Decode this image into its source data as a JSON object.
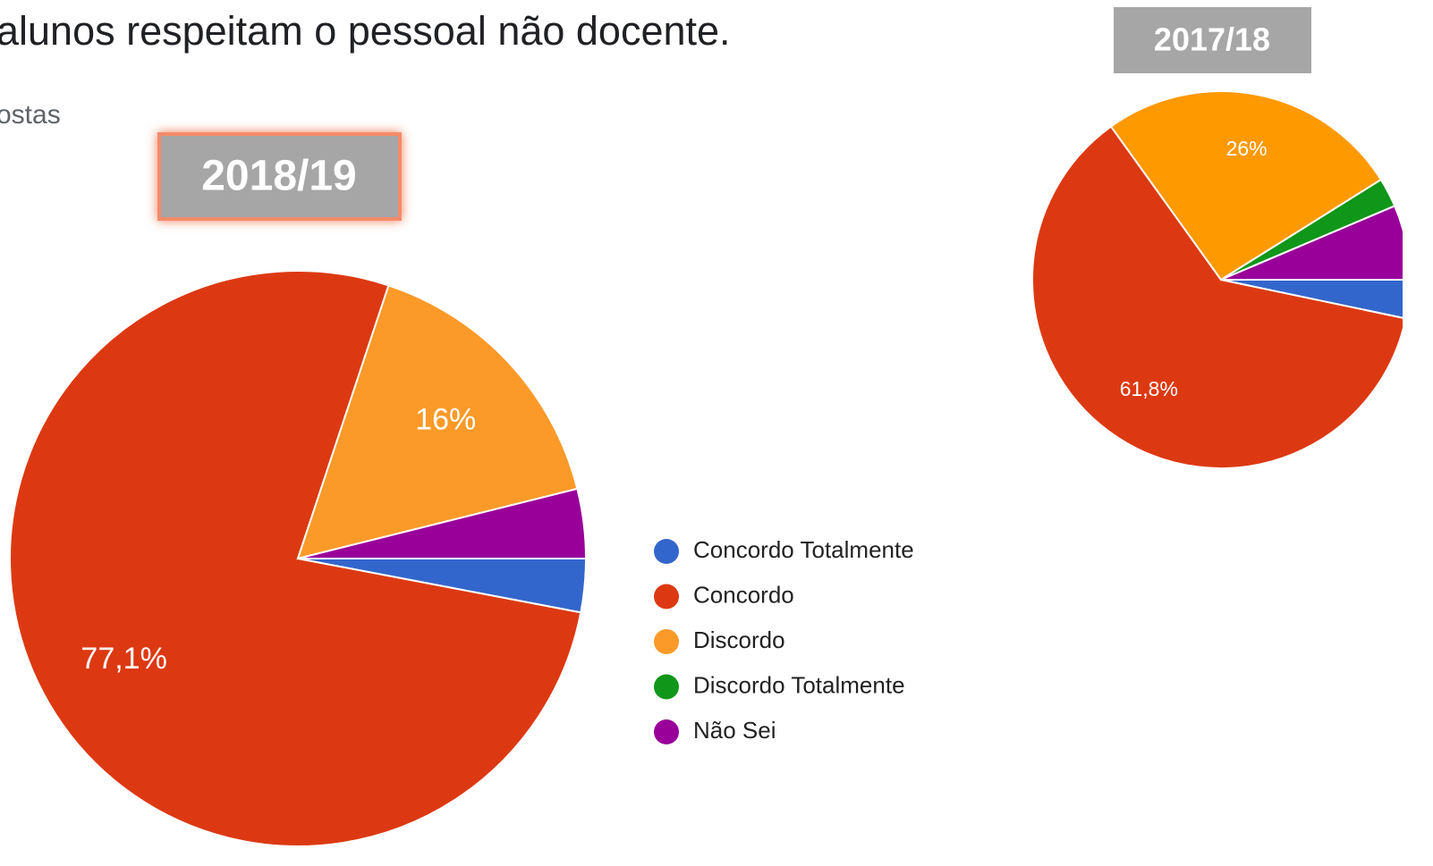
{
  "chart_data": [
    {
      "type": "pie",
      "title": "alunos respeitam o pessoal não docente.",
      "subtitle": "ostas",
      "annotation": "2018/19",
      "categories": [
        "Concordo Totalmente",
        "Concordo",
        "Discordo",
        "Discordo Totalmente",
        "Não Sei"
      ],
      "values": [
        3.0,
        77.1,
        16,
        0,
        3.9
      ],
      "value_labels": [
        null,
        "77,1%",
        "16%",
        null,
        null
      ],
      "colors": [
        "#3366cc",
        "#dc3912",
        "#fb9a28",
        "#109618",
        "#990099"
      ],
      "legend": "right"
    },
    {
      "type": "pie",
      "annotation": "2017/18",
      "values": [
        3.3,
        61.8,
        26,
        2.5,
        6.4
      ],
      "value_labels": [
        null,
        "61,8%",
        "26%",
        null,
        null
      ],
      "colors": [
        "#3366cc",
        "#dc3912",
        "#ff9900",
        "#109618",
        "#990099"
      ]
    }
  ]
}
